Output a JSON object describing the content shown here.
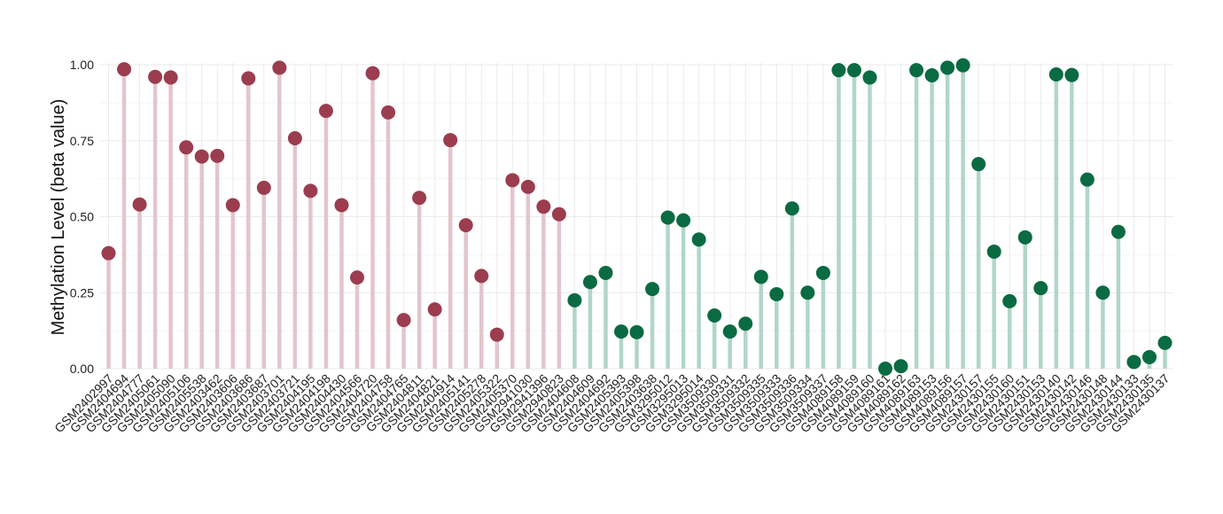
{
  "chart_data": {
    "type": "lollipop",
    "ylabel": "Methylation Level (beta value)",
    "ylim": [
      0,
      1
    ],
    "yticks": [
      0.0,
      0.25,
      0.5,
      0.75,
      1.0
    ],
    "ytick_labels": [
      "0.00",
      "0.25",
      "0.50",
      "0.75",
      "1.00"
    ],
    "grid": true,
    "colors": {
      "group1_point": "#9b3d4f",
      "group1_stem": "#e3c5cc",
      "group2_point": "#0a6b43",
      "group2_stem": "#b1d6c9"
    },
    "categories": [
      "GSM2402997",
      "GSM2404694",
      "GSM2404777",
      "GSM2405061",
      "GSM2405090",
      "GSM2405106",
      "GSM2405538",
      "GSM2403462",
      "GSM2403606",
      "GSM2403686",
      "GSM2403687",
      "GSM2403701",
      "GSM2403721",
      "GSM2404195",
      "GSM2404198",
      "GSM2404430",
      "GSM2404566",
      "GSM2404720",
      "GSM2404758",
      "GSM2404765",
      "GSM2404811",
      "GSM2404821",
      "GSM2404914",
      "GSM2405141",
      "GSM2405278",
      "GSM2405322",
      "GSM2405370",
      "GSM2941030",
      "GSM2941396",
      "GSM2940823",
      "GSM2404608",
      "GSM2404609",
      "GSM2404692",
      "GSM2405393",
      "GSM2405398",
      "GSM2403638",
      "GSM3295012",
      "GSM3295013",
      "GSM3295014",
      "GSM3509330",
      "GSM3509331",
      "GSM3509332",
      "GSM3509335",
      "GSM3509333",
      "GSM3509336",
      "GSM3509334",
      "GSM3509337",
      "GSM4089158",
      "GSM4089159",
      "GSM4089160",
      "GSM4089161",
      "GSM4089162",
      "GSM4089163",
      "GSM4089153",
      "GSM4089156",
      "GSM4089157",
      "GSM2430157",
      "GSM2430155",
      "GSM2430160",
      "GSM2430151",
      "GSM2430153",
      "GSM2430140",
      "GSM2430142",
      "GSM2430146",
      "GSM2430148",
      "GSM2430144",
      "GSM2430133",
      "GSM2430135",
      "GSM2430137"
    ],
    "values": [
      0.38,
      0.985,
      0.54,
      0.96,
      0.958,
      0.728,
      0.698,
      0.7,
      0.538,
      0.955,
      0.595,
      0.99,
      0.758,
      0.585,
      0.848,
      0.538,
      0.3,
      0.972,
      0.843,
      0.16,
      0.562,
      0.195,
      0.752,
      0.472,
      0.305,
      0.112,
      0.62,
      0.598,
      0.533,
      0.508,
      0.225,
      0.285,
      0.315,
      0.122,
      0.12,
      0.262,
      0.497,
      0.488,
      0.425,
      0.175,
      0.122,
      0.148,
      0.302,
      0.245,
      0.527,
      0.25,
      0.315,
      0.982,
      0.982,
      0.958,
      0.0,
      0.008,
      0.982,
      0.965,
      0.99,
      0.998,
      0.673,
      0.385,
      0.222,
      0.432,
      0.265,
      0.968,
      0.966,
      0.622,
      0.25,
      0.45,
      0.022,
      0.038,
      0.085
    ],
    "groups": [
      1,
      1,
      1,
      1,
      1,
      1,
      1,
      1,
      1,
      1,
      1,
      1,
      1,
      1,
      1,
      1,
      1,
      1,
      1,
      1,
      1,
      1,
      1,
      1,
      1,
      1,
      1,
      1,
      1,
      1,
      2,
      2,
      2,
      2,
      2,
      2,
      2,
      2,
      2,
      2,
      2,
      2,
      2,
      2,
      2,
      2,
      2,
      2,
      2,
      2,
      2,
      2,
      2,
      2,
      2,
      2,
      2,
      2,
      2,
      2,
      2,
      2,
      2,
      2,
      2,
      2,
      2,
      2,
      2
    ]
  }
}
